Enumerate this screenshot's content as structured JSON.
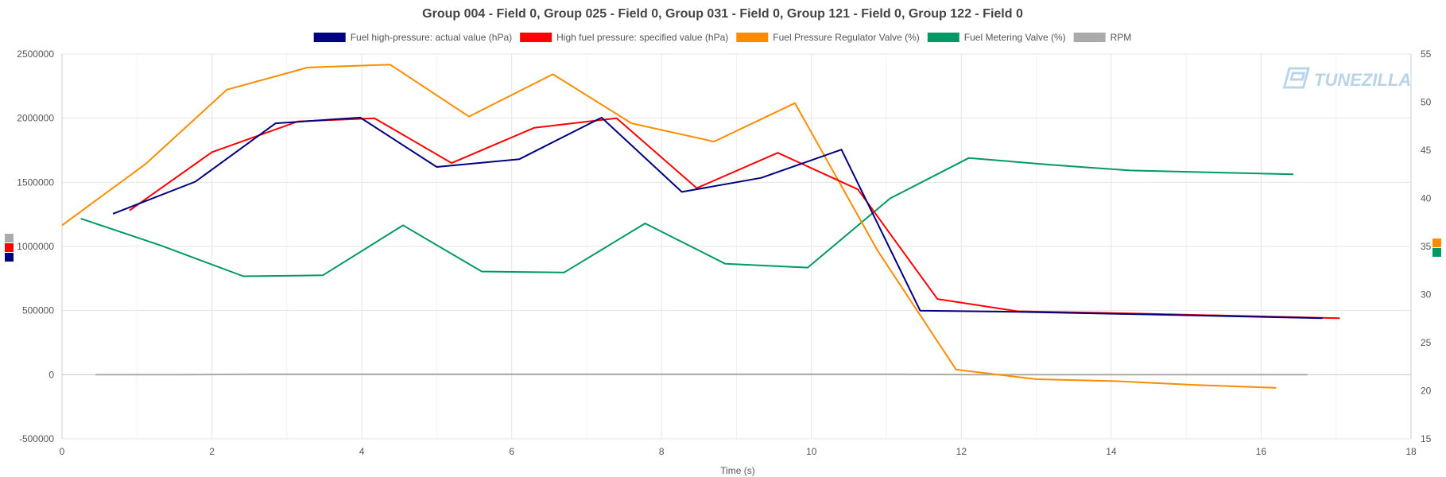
{
  "watermark": "TUNEZILLA",
  "chart_data": {
    "type": "line",
    "title": "Group 004 - Field 0, Group 025 - Field 0, Group 031 - Field 0, Group 121 - Field 0, Group 122 - Field 0",
    "xlabel": "Time (s)",
    "xlim": [
      0,
      18
    ],
    "x_ticks": [
      0,
      2,
      4,
      6,
      8,
      10,
      12,
      14,
      16,
      18
    ],
    "y_left": {
      "lim": [
        -500000,
        2500000
      ],
      "ticks": [
        -500000,
        0,
        500000,
        1000000,
        1500000,
        2000000,
        2500000
      ],
      "tick_labels": [
        "-500000",
        "0",
        "500000",
        "1000000",
        "1500000",
        "2000000",
        "2500000"
      ]
    },
    "y_right": {
      "lim": [
        15,
        55
      ],
      "ticks": [
        15,
        20,
        25,
        30,
        35,
        40,
        45,
        50,
        55
      ],
      "tick_labels": [
        "15",
        "20",
        "25",
        "30",
        "35",
        "40",
        "45",
        "50",
        "55"
      ]
    },
    "grid": true,
    "legend_position": "top-center",
    "series": [
      {
        "name": "Fuel high-pressure: actual value (hPa)",
        "color": "#000080",
        "axis": "left",
        "points": [
          [
            0.68,
            1255000
          ],
          [
            1.78,
            1505000
          ],
          [
            2.85,
            1960000
          ],
          [
            3.98,
            2005000
          ],
          [
            5.0,
            1620000
          ],
          [
            6.1,
            1680000
          ],
          [
            7.2,
            2005000
          ],
          [
            8.27,
            1425000
          ],
          [
            9.33,
            1535000
          ],
          [
            10.4,
            1755000
          ],
          [
            11.45,
            500000
          ],
          [
            12.75,
            490000
          ],
          [
            14.5,
            470000
          ],
          [
            16.82,
            440000
          ]
        ]
      },
      {
        "name": "High fuel pressure: specified value (hPa)",
        "color": "#ff0000",
        "axis": "left",
        "points": [
          [
            0.9,
            1280000
          ],
          [
            2.0,
            1735000
          ],
          [
            3.15,
            1975000
          ],
          [
            4.17,
            2000000
          ],
          [
            5.2,
            1650000
          ],
          [
            6.3,
            1925000
          ],
          [
            7.4,
            2000000
          ],
          [
            8.47,
            1455000
          ],
          [
            9.55,
            1730000
          ],
          [
            10.62,
            1445000
          ],
          [
            11.68,
            590000
          ],
          [
            12.75,
            495000
          ],
          [
            14.5,
            475000
          ],
          [
            17.05,
            440000
          ]
        ]
      },
      {
        "name": "Fuel Pressure Regulator Valve (%)",
        "color": "#ff8c00",
        "axis": "right",
        "points": [
          [
            0.0,
            37.2
          ],
          [
            1.12,
            43.6
          ],
          [
            2.2,
            51.3
          ],
          [
            3.28,
            53.6
          ],
          [
            4.38,
            53.9
          ],
          [
            5.43,
            48.5
          ],
          [
            6.55,
            52.9
          ],
          [
            7.6,
            47.8
          ],
          [
            8.7,
            45.9
          ],
          [
            9.78,
            49.9
          ],
          [
            10.88,
            34.6
          ],
          [
            11.93,
            22.2
          ],
          [
            13.0,
            21.2
          ],
          [
            14.05,
            21.0
          ],
          [
            15.13,
            20.6
          ],
          [
            16.2,
            20.3
          ]
        ]
      },
      {
        "name": "Fuel Metering Valve (%)",
        "color": "#009966",
        "axis": "right",
        "points": [
          [
            0.25,
            37.9
          ],
          [
            1.32,
            35.1
          ],
          [
            2.42,
            31.9
          ],
          [
            3.48,
            32.0
          ],
          [
            4.55,
            37.2
          ],
          [
            5.6,
            32.4
          ],
          [
            6.7,
            32.3
          ],
          [
            7.78,
            37.4
          ],
          [
            8.85,
            33.2
          ],
          [
            9.95,
            32.8
          ],
          [
            11.05,
            40.0
          ],
          [
            12.1,
            44.2
          ],
          [
            13.17,
            43.5
          ],
          [
            14.25,
            42.9
          ],
          [
            16.43,
            42.5
          ]
        ]
      },
      {
        "name": "RPM",
        "color": "#aaaaaa",
        "axis": "left",
        "points": [
          [
            0.45,
            0
          ],
          [
            1.52,
            0
          ],
          [
            2.6,
            3000
          ],
          [
            3.67,
            3000
          ],
          [
            4.75,
            3000
          ],
          [
            5.8,
            3000
          ],
          [
            6.9,
            3000
          ],
          [
            7.98,
            3000
          ],
          [
            9.05,
            3000
          ],
          [
            10.12,
            3000
          ],
          [
            11.22,
            3000
          ],
          [
            12.3,
            0
          ],
          [
            13.37,
            0
          ],
          [
            14.45,
            0
          ],
          [
            16.62,
            0
          ]
        ]
      }
    ]
  }
}
